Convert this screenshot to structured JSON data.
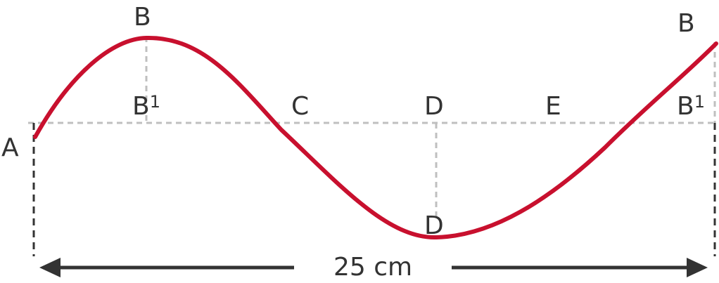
{
  "labels": {
    "a": "A",
    "b_left_top": "B",
    "b_left_base": "B",
    "b_left_base_sup": "1",
    "c": "C",
    "d_mid": "D",
    "d_bottom": "D",
    "e": "E",
    "b_right_top": "B",
    "b_right_base": "B",
    "b_right_base_sup": "1"
  },
  "measure": {
    "text": "25 cm"
  },
  "colors": {
    "wave": "#c8102e",
    "guides": "#bfbfbf",
    "text": "#333333"
  }
}
